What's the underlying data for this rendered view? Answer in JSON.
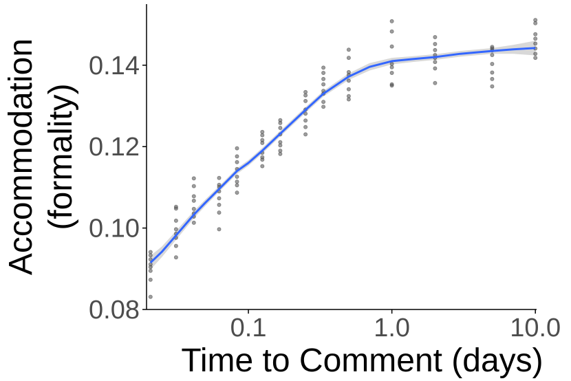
{
  "chart_data": {
    "type": "scatter",
    "xlabel": "Time to Comment (days)",
    "ylabel_line1": "Accommodation",
    "ylabel_line2": "(formality)",
    "x_scale": "log10",
    "xlim": [
      0.0195,
      10.2
    ],
    "ylim": [
      0.08,
      0.155
    ],
    "x_ticks": [
      {
        "value": 0.1,
        "label": "0.1"
      },
      {
        "value": 1.0,
        "label": "1.0"
      },
      {
        "value": 10.0,
        "label": "10.0"
      }
    ],
    "y_ticks": [
      {
        "value": 0.08,
        "label": "0.08"
      },
      {
        "value": 0.1,
        "label": "0.10"
      },
      {
        "value": 0.12,
        "label": "0.12"
      },
      {
        "value": 0.14,
        "label": "0.14"
      }
    ],
    "grid": false,
    "points": [
      {
        "x": 0.0208,
        "y": 0.0831
      },
      {
        "x": 0.0208,
        "y": 0.0873
      },
      {
        "x": 0.0208,
        "y": 0.0895
      },
      {
        "x": 0.0208,
        "y": 0.0904
      },
      {
        "x": 0.0208,
        "y": 0.0911
      },
      {
        "x": 0.0208,
        "y": 0.0923
      },
      {
        "x": 0.0208,
        "y": 0.0933
      },
      {
        "x": 0.0208,
        "y": 0.0941
      },
      {
        "x": 0.0313,
        "y": 0.0928
      },
      {
        "x": 0.0313,
        "y": 0.0956
      },
      {
        "x": 0.0313,
        "y": 0.0976
      },
      {
        "x": 0.0313,
        "y": 0.0986
      },
      {
        "x": 0.0313,
        "y": 0.0997
      },
      {
        "x": 0.0313,
        "y": 0.1018
      },
      {
        "x": 0.0313,
        "y": 0.1048
      },
      {
        "x": 0.0313,
        "y": 0.1052
      },
      {
        "x": 0.0417,
        "y": 0.1013
      },
      {
        "x": 0.0417,
        "y": 0.1028
      },
      {
        "x": 0.0417,
        "y": 0.1036
      },
      {
        "x": 0.0417,
        "y": 0.1047
      },
      {
        "x": 0.0417,
        "y": 0.1067
      },
      {
        "x": 0.0417,
        "y": 0.1078
      },
      {
        "x": 0.0417,
        "y": 0.1103
      },
      {
        "x": 0.0417,
        "y": 0.1122
      },
      {
        "x": 0.0625,
        "y": 0.0997
      },
      {
        "x": 0.0625,
        "y": 0.1038
      },
      {
        "x": 0.0625,
        "y": 0.1057
      },
      {
        "x": 0.0625,
        "y": 0.1073
      },
      {
        "x": 0.0625,
        "y": 0.109
      },
      {
        "x": 0.0625,
        "y": 0.1101
      },
      {
        "x": 0.0625,
        "y": 0.1106
      },
      {
        "x": 0.0625,
        "y": 0.1123
      },
      {
        "x": 0.0833,
        "y": 0.1087
      },
      {
        "x": 0.0833,
        "y": 0.1105
      },
      {
        "x": 0.0833,
        "y": 0.1114
      },
      {
        "x": 0.0833,
        "y": 0.1126
      },
      {
        "x": 0.0833,
        "y": 0.1145
      },
      {
        "x": 0.0833,
        "y": 0.1162
      },
      {
        "x": 0.0833,
        "y": 0.1176
      },
      {
        "x": 0.0833,
        "y": 0.1196
      },
      {
        "x": 0.125,
        "y": 0.1152
      },
      {
        "x": 0.125,
        "y": 0.1168
      },
      {
        "x": 0.125,
        "y": 0.1174
      },
      {
        "x": 0.125,
        "y": 0.1185
      },
      {
        "x": 0.125,
        "y": 0.1209
      },
      {
        "x": 0.125,
        "y": 0.1216
      },
      {
        "x": 0.125,
        "y": 0.1228
      },
      {
        "x": 0.125,
        "y": 0.1236
      },
      {
        "x": 0.1667,
        "y": 0.1182
      },
      {
        "x": 0.1667,
        "y": 0.119
      },
      {
        "x": 0.1667,
        "y": 0.1203
      },
      {
        "x": 0.1667,
        "y": 0.1211
      },
      {
        "x": 0.1667,
        "y": 0.123
      },
      {
        "x": 0.1667,
        "y": 0.1246
      },
      {
        "x": 0.1667,
        "y": 0.1258
      },
      {
        "x": 0.1667,
        "y": 0.1265
      },
      {
        "x": 0.25,
        "y": 0.123
      },
      {
        "x": 0.25,
        "y": 0.1248
      },
      {
        "x": 0.25,
        "y": 0.1264
      },
      {
        "x": 0.25,
        "y": 0.1281
      },
      {
        "x": 0.25,
        "y": 0.1291
      },
      {
        "x": 0.25,
        "y": 0.1312
      },
      {
        "x": 0.25,
        "y": 0.1326
      },
      {
        "x": 0.25,
        "y": 0.1334
      },
      {
        "x": 0.3333,
        "y": 0.1298
      },
      {
        "x": 0.3333,
        "y": 0.131
      },
      {
        "x": 0.3333,
        "y": 0.133
      },
      {
        "x": 0.3333,
        "y": 0.1337
      },
      {
        "x": 0.3333,
        "y": 0.1353
      },
      {
        "x": 0.3333,
        "y": 0.1366
      },
      {
        "x": 0.3333,
        "y": 0.1381
      },
      {
        "x": 0.3333,
        "y": 0.1394
      },
      {
        "x": 0.5,
        "y": 0.1316
      },
      {
        "x": 0.5,
        "y": 0.1324
      },
      {
        "x": 0.5,
        "y": 0.1341
      },
      {
        "x": 0.5,
        "y": 0.1362
      },
      {
        "x": 0.5,
        "y": 0.1376
      },
      {
        "x": 0.5,
        "y": 0.1383
      },
      {
        "x": 0.5,
        "y": 0.1418
      },
      {
        "x": 0.5,
        "y": 0.1438
      },
      {
        "x": 1.0,
        "y": 0.135
      },
      {
        "x": 1.0,
        "y": 0.1353
      },
      {
        "x": 1.0,
        "y": 0.1381
      },
      {
        "x": 1.0,
        "y": 0.1395
      },
      {
        "x": 1.0,
        "y": 0.1403
      },
      {
        "x": 1.0,
        "y": 0.1446
      },
      {
        "x": 1.0,
        "y": 0.1483
      },
      {
        "x": 1.0,
        "y": 0.1508
      },
      {
        "x": 2.0,
        "y": 0.1356
      },
      {
        "x": 2.0,
        "y": 0.1392
      },
      {
        "x": 2.0,
        "y": 0.1408
      },
      {
        "x": 2.0,
        "y": 0.1418
      },
      {
        "x": 2.0,
        "y": 0.1425
      },
      {
        "x": 2.0,
        "y": 0.1437
      },
      {
        "x": 2.0,
        "y": 0.1452
      },
      {
        "x": 2.0,
        "y": 0.1469
      },
      {
        "x": 5.0,
        "y": 0.1348
      },
      {
        "x": 5.0,
        "y": 0.1366
      },
      {
        "x": 5.0,
        "y": 0.1382
      },
      {
        "x": 5.0,
        "y": 0.1403
      },
      {
        "x": 5.0,
        "y": 0.1425
      },
      {
        "x": 5.0,
        "y": 0.1436
      },
      {
        "x": 5.0,
        "y": 0.1441
      },
      {
        "x": 5.0,
        "y": 0.1445
      },
      {
        "x": 10.0,
        "y": 0.1418
      },
      {
        "x": 10.0,
        "y": 0.1428
      },
      {
        "x": 10.0,
        "y": 0.1441
      },
      {
        "x": 10.0,
        "y": 0.1453
      },
      {
        "x": 10.0,
        "y": 0.1465
      },
      {
        "x": 10.0,
        "y": 0.1476
      },
      {
        "x": 10.0,
        "y": 0.1503
      },
      {
        "x": 10.0,
        "y": 0.1511
      }
    ],
    "smooth_curve": [
      {
        "x": 0.0208,
        "y": 0.0915,
        "lo": 0.0898,
        "hi": 0.0932
      },
      {
        "x": 0.025,
        "y": 0.0942,
        "lo": 0.0929,
        "hi": 0.0955
      },
      {
        "x": 0.0313,
        "y": 0.0982,
        "lo": 0.0971,
        "hi": 0.0993
      },
      {
        "x": 0.0417,
        "y": 0.1033,
        "lo": 0.1024,
        "hi": 0.1042
      },
      {
        "x": 0.05,
        "y": 0.1062,
        "lo": 0.1054,
        "hi": 0.107
      },
      {
        "x": 0.0625,
        "y": 0.1096,
        "lo": 0.1089,
        "hi": 0.1103
      },
      {
        "x": 0.0833,
        "y": 0.114,
        "lo": 0.1133,
        "hi": 0.1147
      },
      {
        "x": 0.1,
        "y": 0.116,
        "lo": 0.1153,
        "hi": 0.1167
      },
      {
        "x": 0.125,
        "y": 0.119,
        "lo": 0.1183,
        "hi": 0.1197
      },
      {
        "x": 0.1667,
        "y": 0.1232,
        "lo": 0.1225,
        "hi": 0.1239
      },
      {
        "x": 0.25,
        "y": 0.129,
        "lo": 0.1283,
        "hi": 0.1297
      },
      {
        "x": 0.3333,
        "y": 0.133,
        "lo": 0.1323,
        "hi": 0.1337
      },
      {
        "x": 0.5,
        "y": 0.1372,
        "lo": 0.1364,
        "hi": 0.138
      },
      {
        "x": 0.7,
        "y": 0.1396,
        "lo": 0.1387,
        "hi": 0.1405
      },
      {
        "x": 1.0,
        "y": 0.141,
        "lo": 0.1402,
        "hi": 0.1418
      },
      {
        "x": 1.4,
        "y": 0.1415,
        "lo": 0.1408,
        "hi": 0.1422
      },
      {
        "x": 2.0,
        "y": 0.142,
        "lo": 0.1413,
        "hi": 0.1427
      },
      {
        "x": 3.0,
        "y": 0.1428,
        "lo": 0.1421,
        "hi": 0.1435
      },
      {
        "x": 5.0,
        "y": 0.1435,
        "lo": 0.1428,
        "hi": 0.1442
      },
      {
        "x": 7.0,
        "y": 0.1439,
        "lo": 0.1428,
        "hi": 0.145
      },
      {
        "x": 10.0,
        "y": 0.1442,
        "lo": 0.1424,
        "hi": 0.146
      }
    ],
    "colors": {
      "points": "#4d4d4d",
      "line": "#3366ff",
      "ribbon": "#bebebe",
      "axis": "#000000",
      "tick_text": "#4d4d4d"
    }
  }
}
